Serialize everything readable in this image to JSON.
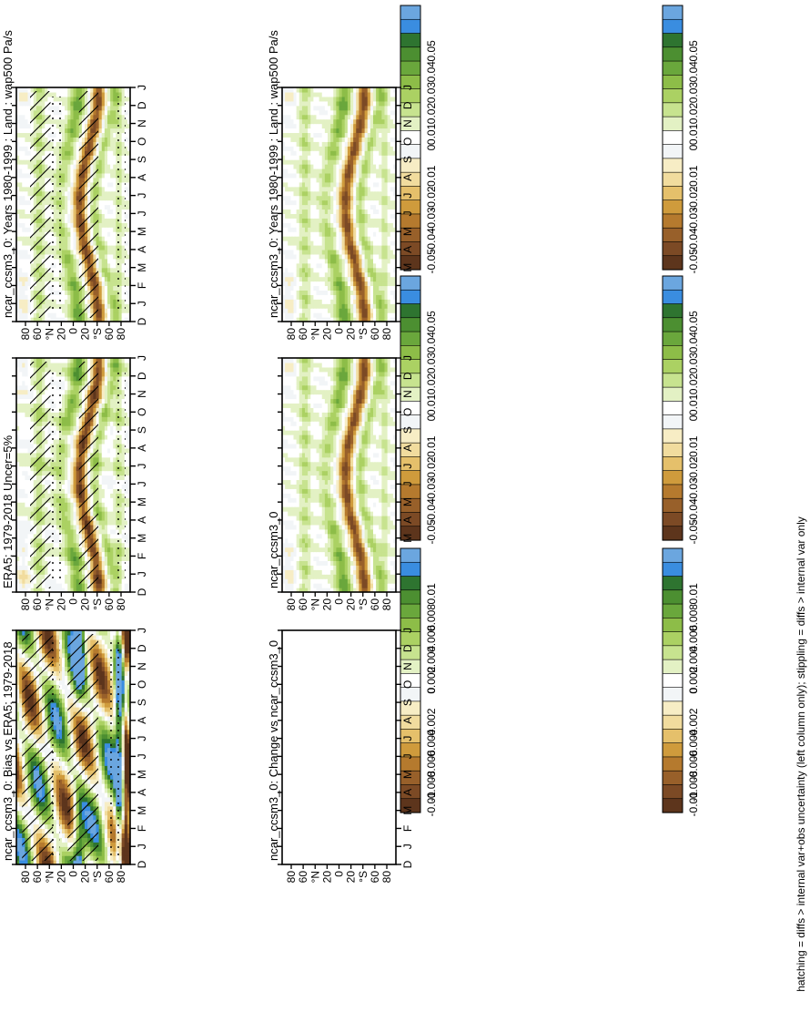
{
  "figure": {
    "footer": "hatching = diffs > internal var+obs uncertainty (left column only); stippling = diffs > internal var only"
  },
  "chart_data": [
    {
      "type": "heatmap",
      "title": "ncar_ccsm3_0: Years 1980-1999 : Land : wap500 Pa/s",
      "x_ticks": [
        "D",
        "J",
        "F",
        "M",
        "A",
        "M",
        "J",
        "J",
        "A",
        "S",
        "O",
        "N",
        "D",
        "J"
      ],
      "y_ticks": [
        "80",
        "60",
        "°N",
        "20",
        "0",
        "20",
        "°S",
        "60",
        "80"
      ],
      "colorbar_ticks": [
        "0.05",
        "0.04",
        "0.03",
        "0.02",
        "0.01",
        "0",
        "-0.01",
        "-0.02",
        "-0.03",
        "-0.04",
        "-0.05"
      ],
      "hatching": true,
      "stippling": true,
      "field": "model"
    },
    {
      "type": "heatmap",
      "title": "ncar_ccsm3_0: Years 1980-1999 : Land : wap500 Pa/s",
      "x_ticks": [
        "D",
        "J",
        "F",
        "M",
        "A",
        "M",
        "J",
        "J",
        "A",
        "S",
        "O",
        "N",
        "D",
        "J"
      ],
      "y_ticks": [
        "80",
        "60",
        "°N",
        "20",
        "0",
        "20",
        "°S",
        "60",
        "80"
      ],
      "colorbar_ticks": [
        "0.05",
        "0.04",
        "0.03",
        "0.02",
        "0.01",
        "0",
        "-0.01",
        "-0.02",
        "-0.03",
        "-0.04",
        "-0.05"
      ],
      "hatching": false,
      "stippling": false,
      "field": "model"
    },
    {
      "type": "heatmap",
      "title": "ERA5: 1979-2018 Uncer=5%",
      "x_ticks": [
        "D",
        "J",
        "F",
        "M",
        "A",
        "M",
        "J",
        "J",
        "A",
        "S",
        "O",
        "N",
        "D",
        "J"
      ],
      "y_ticks": [
        "80",
        "60",
        "°N",
        "20",
        "0",
        "20",
        "°S",
        "60",
        "80"
      ],
      "colorbar_ticks": [
        "0.05",
        "0.04",
        "0.03",
        "0.02",
        "0.01",
        "0",
        "-0.01",
        "-0.02",
        "-0.03",
        "-0.04",
        "-0.05"
      ],
      "hatching": true,
      "stippling": true,
      "field": "obs"
    },
    {
      "type": "heatmap",
      "title": "ncar_ccsm3_0",
      "x_ticks": [
        "D",
        "J",
        "F",
        "M",
        "A",
        "M",
        "J",
        "J",
        "A",
        "S",
        "O",
        "N",
        "D",
        "J"
      ],
      "y_ticks": [
        "80",
        "60",
        "°N",
        "20",
        "0",
        "20",
        "°S",
        "60",
        "80"
      ],
      "colorbar_ticks": [
        "0.05",
        "0.04",
        "0.03",
        "0.02",
        "0.01",
        "0",
        "-0.01",
        "-0.02",
        "-0.03",
        "-0.04",
        "-0.05"
      ],
      "hatching": false,
      "stippling": false,
      "field": "model"
    },
    {
      "type": "heatmap",
      "title": "ncar_ccsm3_0: Bias vs ERA5: 1979-2018",
      "x_ticks": [
        "D",
        "J",
        "F",
        "M",
        "A",
        "M",
        "J",
        "J",
        "A",
        "S",
        "O",
        "N",
        "D",
        "J"
      ],
      "y_ticks": [
        "80",
        "60",
        "°N",
        "20",
        "0",
        "20",
        "°S",
        "60",
        "80"
      ],
      "colorbar_ticks": [
        "0.01",
        "0.008",
        "0.006",
        "0.004",
        "0.002",
        "0",
        "-0.002",
        "-0.004",
        "-0.006",
        "-0.008",
        "-0.01"
      ],
      "hatching": true,
      "stippling": true,
      "field": "bias"
    },
    {
      "type": "heatmap",
      "title": "ncar_ccsm3_0: Change vs ncar_ccsm3_0",
      "x_ticks": [
        "D",
        "J",
        "F",
        "M",
        "A",
        "M",
        "J",
        "J",
        "A",
        "S",
        "O",
        "N",
        "D",
        "J"
      ],
      "y_ticks": [
        "80",
        "60",
        "°N",
        "20",
        "0",
        "20",
        "°S",
        "60",
        "80"
      ],
      "colorbar_ticks": [
        "0.01",
        "0.008",
        "0.006",
        "0.004",
        "0.002",
        "0",
        "-0.002",
        "-0.004",
        "-0.006",
        "-0.008",
        "-0.01"
      ],
      "hatching": false,
      "stippling": false,
      "field": "empty"
    }
  ],
  "colormap": [
    "#6ba6df",
    "#3a8de0",
    "#2e7430",
    "#4c8f31",
    "#6aa73c",
    "#8dbd48",
    "#abd163",
    "#c7e38f",
    "#e3f1c4",
    "#ffffff",
    "#f2f5f7",
    "#f7edc5",
    "#f1dc9e",
    "#e5c06b",
    "#cf9b3c",
    "#b57a2e",
    "#98602a",
    "#7c4a25",
    "#5d351c"
  ]
}
